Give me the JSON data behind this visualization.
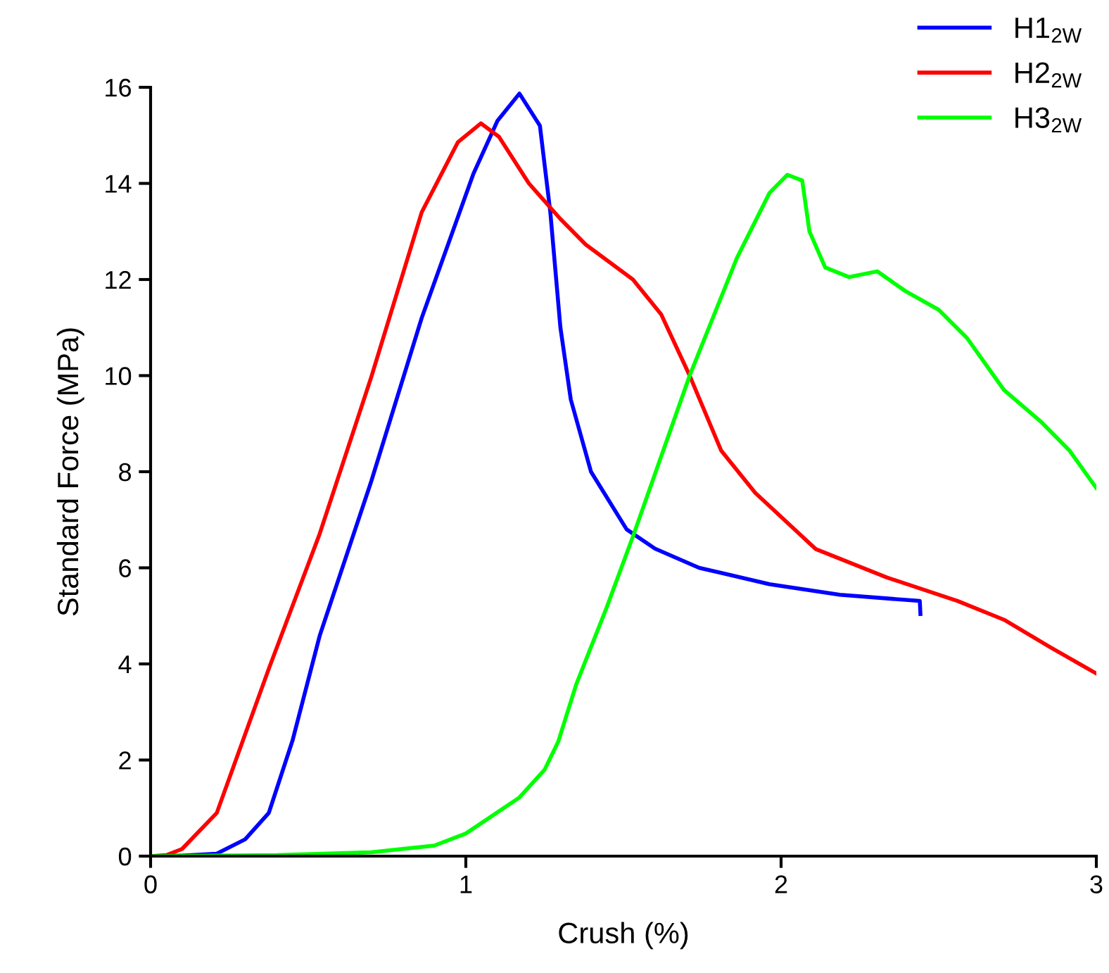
{
  "chart_data": {
    "type": "line",
    "xlabel": "Crush (%)",
    "ylabel": "Standard Force (MPa)",
    "xlim": [
      0,
      3
    ],
    "xticks": [
      0,
      1,
      2,
      3
    ],
    "ylim": [
      0,
      16
    ],
    "yticks": [
      0,
      2,
      4,
      6,
      8,
      10,
      12,
      14,
      16
    ],
    "grid": false,
    "legend": "top right",
    "marker": "none",
    "line_style": "solid",
    "series": [
      {
        "name": "H1$_{2W}$",
        "color": "#0000ff",
        "x": [
          0,
          0.1,
          0.21,
          0.3,
          0.375,
          0.45,
          0.537,
          0.7,
          0.86,
          1.024,
          1.1,
          1.17,
          1.235,
          1.268,
          1.3,
          1.333,
          1.397,
          1.51,
          1.6,
          1.74,
          1.963,
          2.186,
          2.44,
          2.442
        ],
        "values": [
          0,
          0.01,
          0.05,
          0.35,
          0.9,
          2.4,
          4.6,
          7.8,
          11.2,
          14.2,
          15.3,
          15.87,
          15.2,
          13.4,
          11.0,
          9.5,
          8.0,
          6.8,
          6.4,
          6.0,
          5.66,
          5.44,
          5.31,
          5.04
        ]
      },
      {
        "name": "H2$_{2W}$",
        "color": "#ff0000",
        "x": [
          0,
          0.05,
          0.1,
          0.21,
          0.375,
          0.536,
          0.7,
          0.86,
          0.975,
          1.048,
          1.105,
          1.2,
          1.3,
          1.38,
          1.53,
          1.62,
          1.71,
          1.81,
          1.918,
          2.11,
          2.335,
          2.56,
          2.707,
          2.856,
          3.0
        ],
        "values": [
          0,
          0.02,
          0.15,
          0.9,
          3.9,
          6.7,
          9.97,
          13.4,
          14.86,
          15.25,
          14.97,
          14.0,
          13.26,
          12.73,
          12.0,
          11.27,
          10.0,
          8.44,
          7.56,
          6.39,
          5.8,
          5.31,
          4.92,
          4.34,
          3.8
        ]
      },
      {
        "name": "H3$_{2W}$",
        "color": "#00ff00",
        "x": [
          0,
          0.4,
          0.7,
          0.9,
          1.0,
          1.17,
          1.25,
          1.293,
          1.35,
          1.446,
          1.53,
          1.71,
          1.86,
          1.963,
          2.02,
          2.067,
          2.09,
          2.14,
          2.216,
          2.305,
          2.394,
          2.5,
          2.59,
          2.707,
          2.826,
          2.915,
          3.0
        ],
        "values": [
          0,
          0.02,
          0.08,
          0.22,
          0.47,
          1.22,
          1.8,
          2.38,
          3.57,
          5.16,
          6.65,
          10.0,
          12.45,
          13.8,
          14.18,
          14.06,
          13.0,
          12.25,
          12.05,
          12.17,
          11.76,
          11.37,
          10.78,
          9.7,
          9.03,
          8.44,
          7.66
        ]
      }
    ]
  }
}
